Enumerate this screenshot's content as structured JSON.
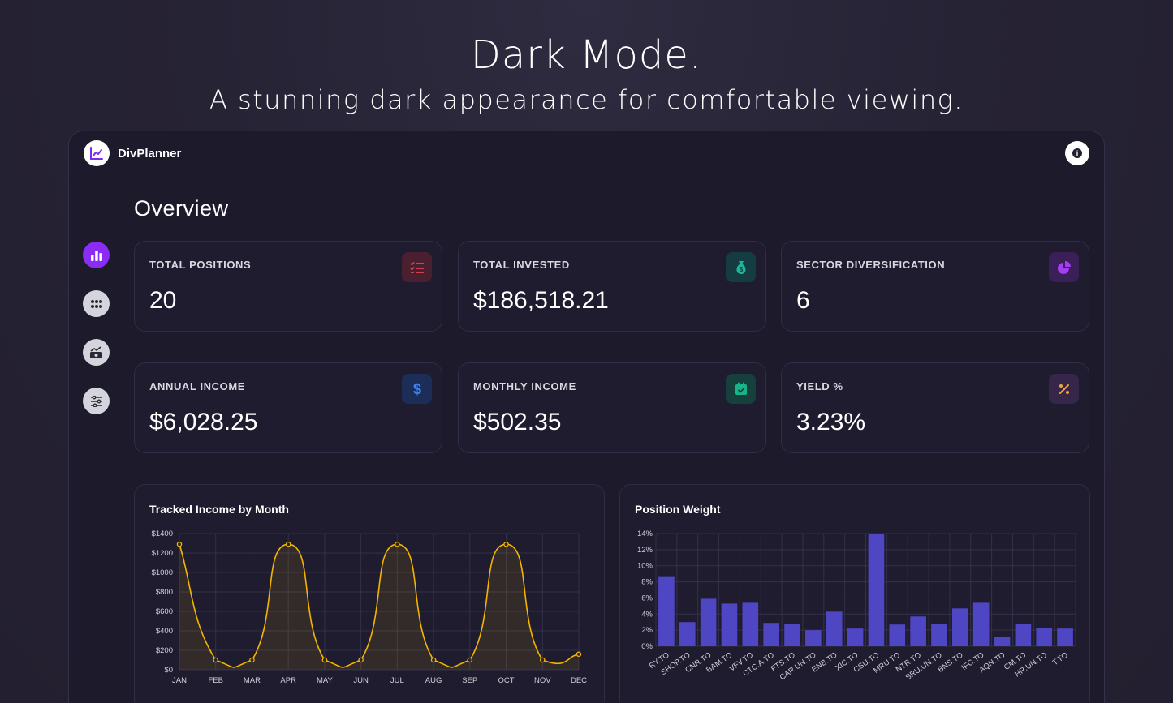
{
  "hero": {
    "title": "Dark Mode.",
    "subtitle": "A stunning dark appearance for comfortable viewing."
  },
  "app": {
    "name": "DivPlanner",
    "page_title": "Overview",
    "sidebar": [
      {
        "icon": "bar-chart-icon",
        "active": true
      },
      {
        "icon": "grid-dots-icon",
        "active": false
      },
      {
        "icon": "chart-growth-icon",
        "active": false
      },
      {
        "icon": "sliders-icon",
        "active": false
      }
    ]
  },
  "stats": [
    {
      "label": "TOTAL POSITIONS",
      "value": "20",
      "icon": "list-check-icon",
      "icon_color": "#e0454f",
      "icon_bg": "#4a2030"
    },
    {
      "label": "TOTAL INVESTED",
      "value": "$186,518.21",
      "icon": "money-bag-icon",
      "icon_color": "#1fb59a",
      "icon_bg": "#153c40"
    },
    {
      "label": "SECTOR DIVERSIFICATION",
      "value": "6",
      "icon": "pie-chart-icon",
      "icon_color": "#a43ef0",
      "icon_bg": "#3a1f58"
    },
    {
      "label": "ANNUAL INCOME",
      "value": "$6,028.25",
      "icon": "dollar-icon",
      "icon_color": "#3c82f0",
      "icon_bg": "#1c2e58"
    },
    {
      "label": "MONTHLY INCOME",
      "value": "$502.35",
      "icon": "calendar-check-icon",
      "icon_color": "#18b38a",
      "icon_bg": "#15403c"
    },
    {
      "label": "YIELD %",
      "value": "3.23%",
      "icon": "percent-icon",
      "icon_color": "#f2a33a",
      "icon_bg": "#35264a"
    }
  ],
  "charts": {
    "income_title": "Tracked Income by Month",
    "weight_title": "Position Weight"
  },
  "colors": {
    "accent": "#8b2cf5",
    "line": "#f4b400",
    "bar": "#4f46c4"
  },
  "chart_data": [
    {
      "type": "line",
      "title": "Tracked Income by Month",
      "categories": [
        "JAN",
        "FEB",
        "MAR",
        "APR",
        "MAY",
        "JUN",
        "JUL",
        "AUG",
        "SEP",
        "OCT",
        "NOV",
        "DEC"
      ],
      "values": [
        1290,
        100,
        100,
        1290,
        100,
        100,
        1290,
        100,
        100,
        1290,
        100,
        160
      ],
      "y_ticks": [
        "$0",
        "$200",
        "$400",
        "$600",
        "$800",
        "$1000",
        "$1200",
        "$1400"
      ],
      "ylim": [
        0,
        1400
      ],
      "grid": true
    },
    {
      "type": "bar",
      "title": "Position Weight",
      "categories": [
        "RY.TO",
        "SHOP.TO",
        "CNR.TO",
        "BAM.TO",
        "VFV.TO",
        "CTC.A.TO",
        "FTS.TO",
        "CAR.UN.TO",
        "ENB.TO",
        "XIC.TO",
        "CSU.TO",
        "MRU.TO",
        "NTR.TO",
        "SRU.UN.TO",
        "BNS.TO",
        "IFC.TO",
        "AQN.TO",
        "CM.TO",
        "HR.UN.TO",
        "T.TO"
      ],
      "values": [
        8.7,
        3.0,
        5.9,
        5.3,
        5.4,
        2.9,
        2.8,
        2.0,
        4.3,
        2.2,
        14.0,
        2.7,
        3.7,
        2.8,
        4.7,
        5.4,
        1.2,
        2.8,
        2.3,
        2.2
      ],
      "y_ticks": [
        "0%",
        "2%",
        "4%",
        "6%",
        "8%",
        "10%",
        "12%",
        "14%"
      ],
      "ylim": [
        0,
        14
      ],
      "grid": true
    }
  ]
}
